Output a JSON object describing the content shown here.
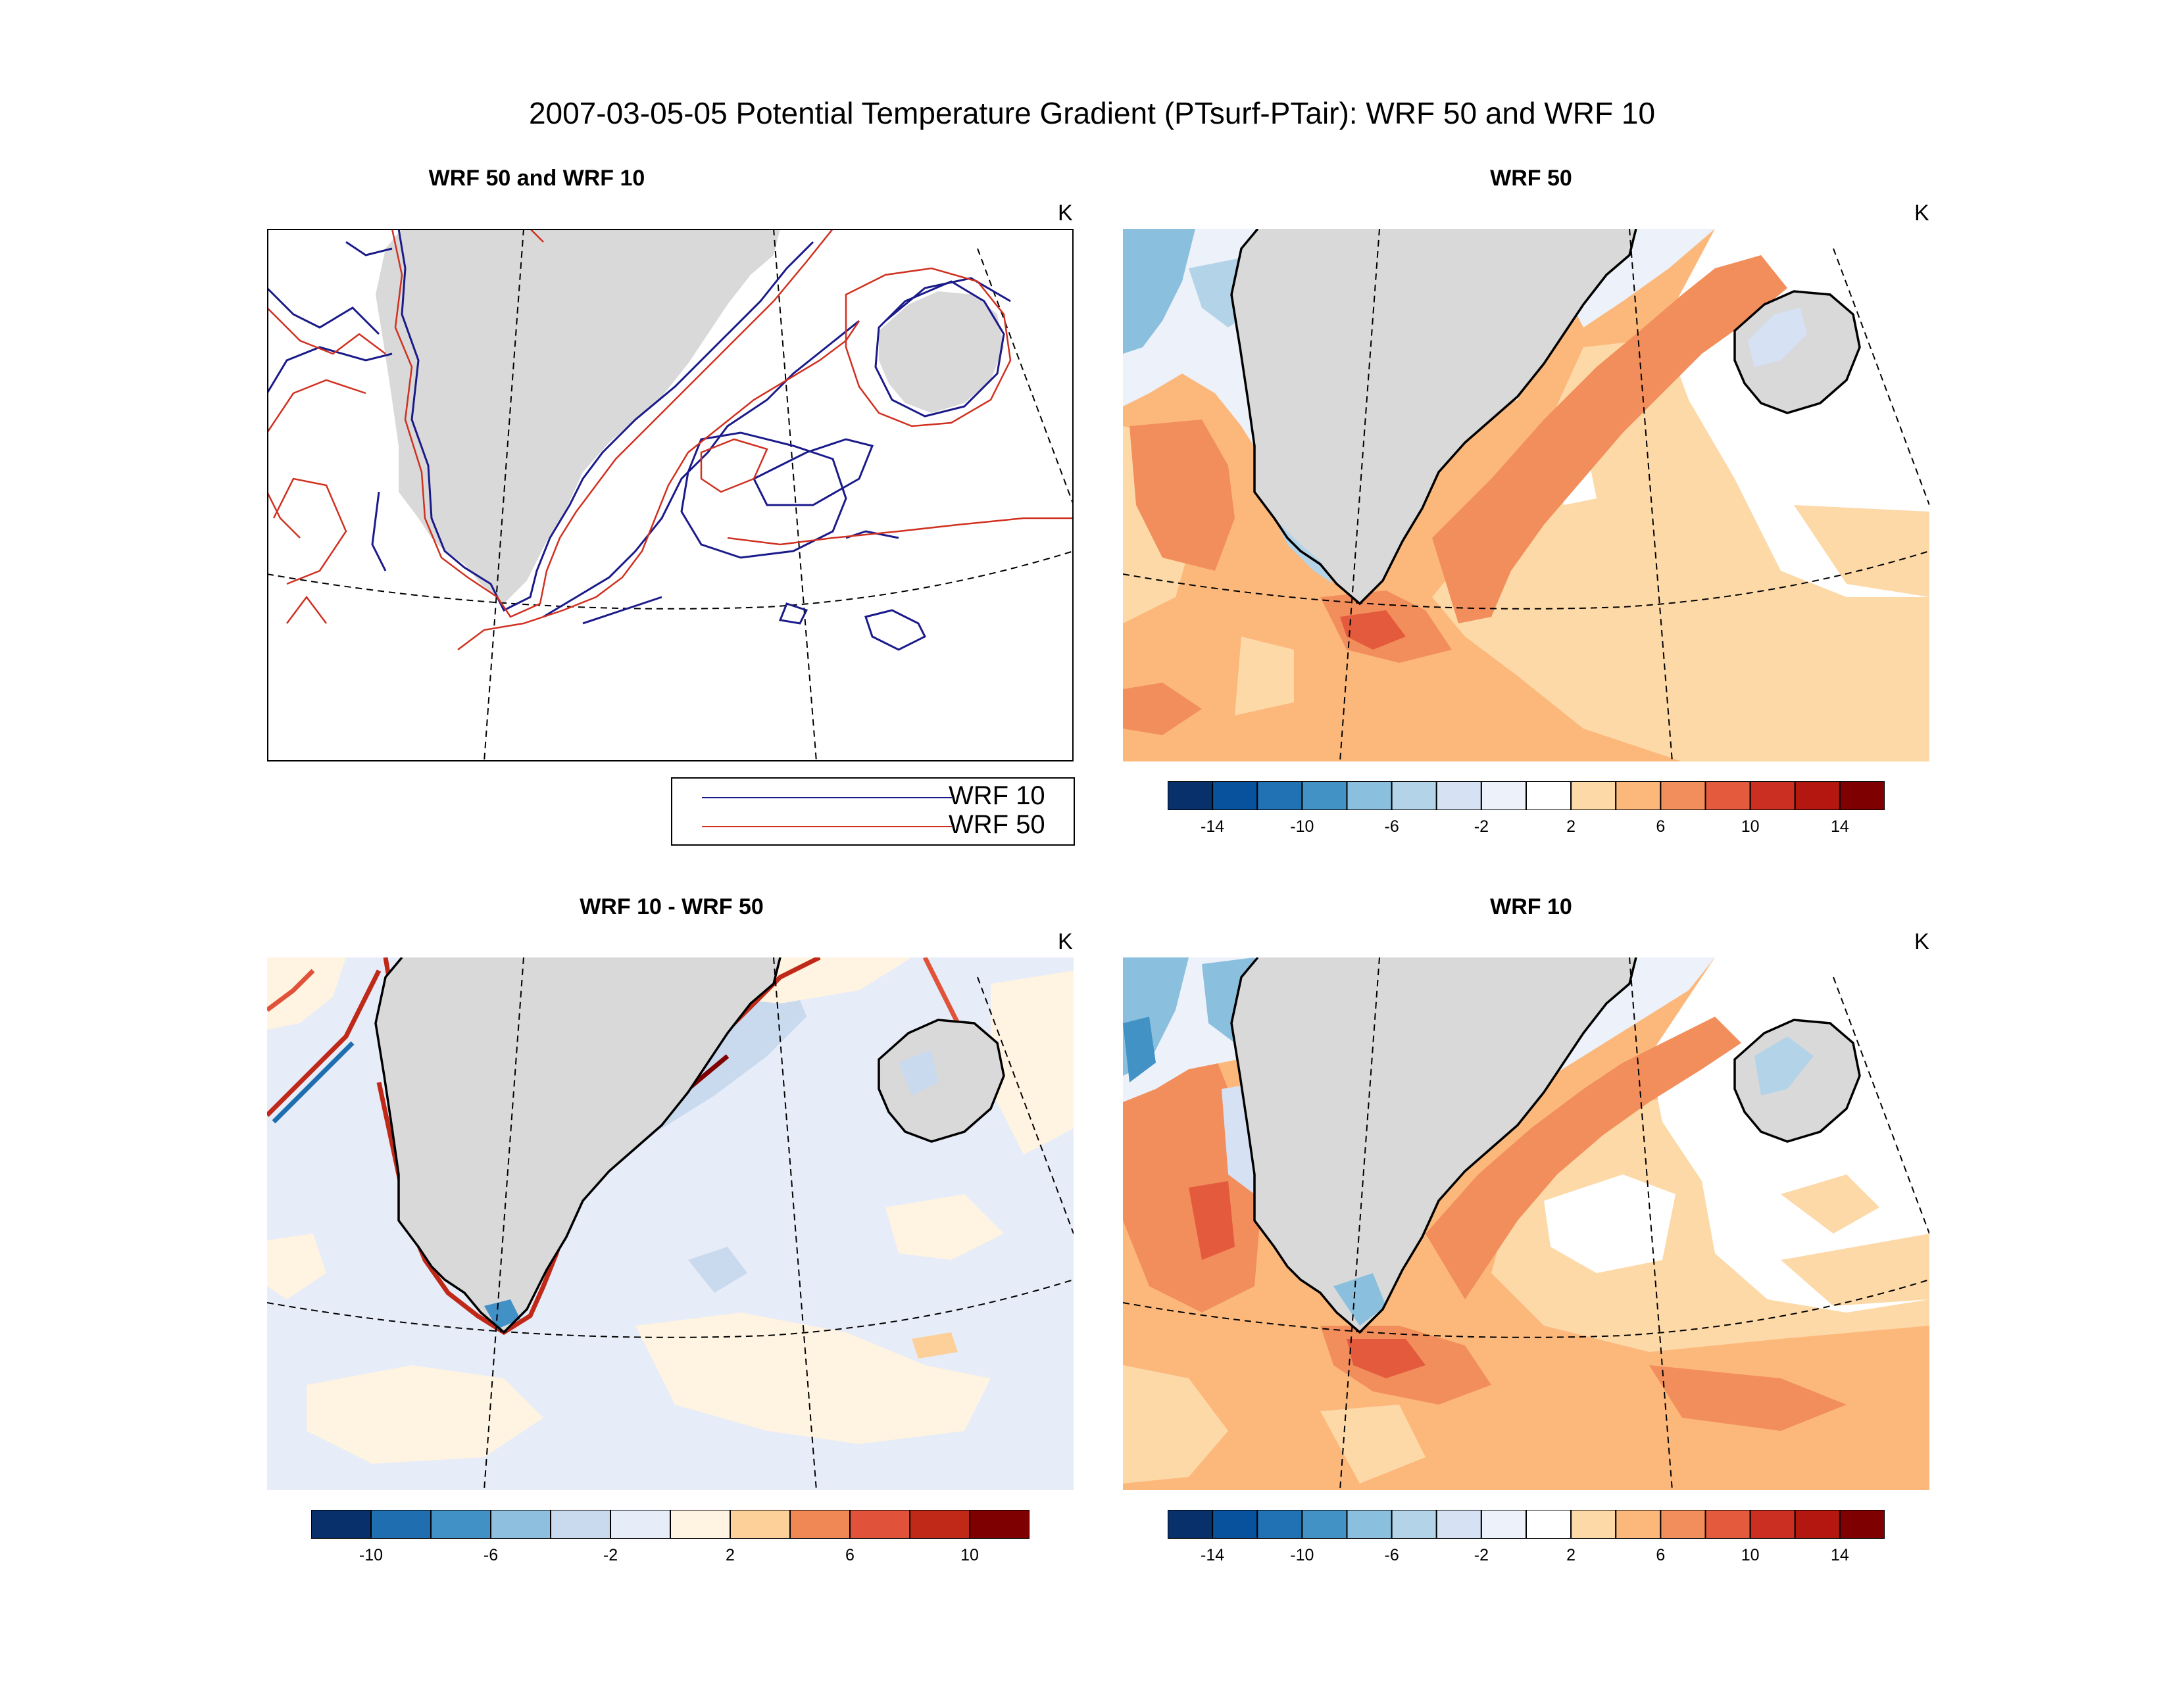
{
  "title": "2007-03-05-05 Potential Temperature Gradient (PTsurf-PTair): WRF 50 and WRF 10",
  "panels": {
    "tl": {
      "title": "WRF 50 and WRF 10",
      "unit": "K"
    },
    "tr": {
      "title": "WRF 50",
      "unit": "K"
    },
    "bl": {
      "title": "WRF 10 - WRF 50",
      "unit": "K"
    },
    "br": {
      "title": "WRF 10",
      "unit": "K"
    }
  },
  "legend": {
    "items": [
      {
        "label": "WRF 10",
        "color": "#1a1a8a"
      },
      {
        "label": "WRF 50",
        "color": "#d03020"
      }
    ]
  },
  "colorbar_full": {
    "colors": [
      "#08306b",
      "#08519c",
      "#2171b5",
      "#4292c6",
      "#8ac0de",
      "#b3d4e8",
      "#d6e2f3",
      "#ecf1fa",
      "#ffffff",
      "#fdd9a8",
      "#fcb87b",
      "#f28e5b",
      "#e45a3d",
      "#cb2f22",
      "#b3170f",
      "#7f0000"
    ],
    "ticks": [
      "-14",
      "-10",
      "-6",
      "-2",
      "2",
      "6",
      "10",
      "14"
    ]
  },
  "colorbar_diff": {
    "colors": [
      "#08306b",
      "#1f6eb0",
      "#4291c6",
      "#8ebfde",
      "#c9d9ee",
      "#e6ecf8",
      "#fff3e1",
      "#fdd09a",
      "#f08856",
      "#e0523a",
      "#c02818",
      "#7f0000"
    ],
    "ticks": [
      "-10",
      "-6",
      "-2",
      "2",
      "6",
      "10"
    ]
  }
}
